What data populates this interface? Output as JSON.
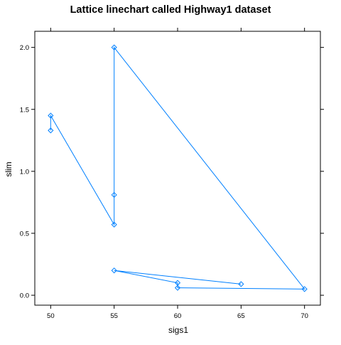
{
  "chart_data": {
    "type": "line",
    "title": "Lattice linechart called Highway1 dataset",
    "xlabel": "sigs1",
    "ylabel": "slim",
    "xlim": [
      48.75,
      71.25
    ],
    "ylim": [
      -0.08,
      2.13
    ],
    "x_ticks": [
      "50",
      "55",
      "60",
      "65",
      "70"
    ],
    "y_ticks": [
      "0.0",
      "0.5",
      "1.0",
      "1.5",
      "2.0"
    ],
    "grid": false,
    "marker": "diamond",
    "series": [
      {
        "x": [
          50,
          50,
          55,
          55,
          55,
          70,
          60,
          60,
          55,
          65
        ],
        "y": [
          1.33,
          1.45,
          0.57,
          0.81,
          2.0,
          0.05,
          0.06,
          0.1,
          0.2,
          0.09
        ],
        "color": "#0080ff"
      }
    ]
  }
}
